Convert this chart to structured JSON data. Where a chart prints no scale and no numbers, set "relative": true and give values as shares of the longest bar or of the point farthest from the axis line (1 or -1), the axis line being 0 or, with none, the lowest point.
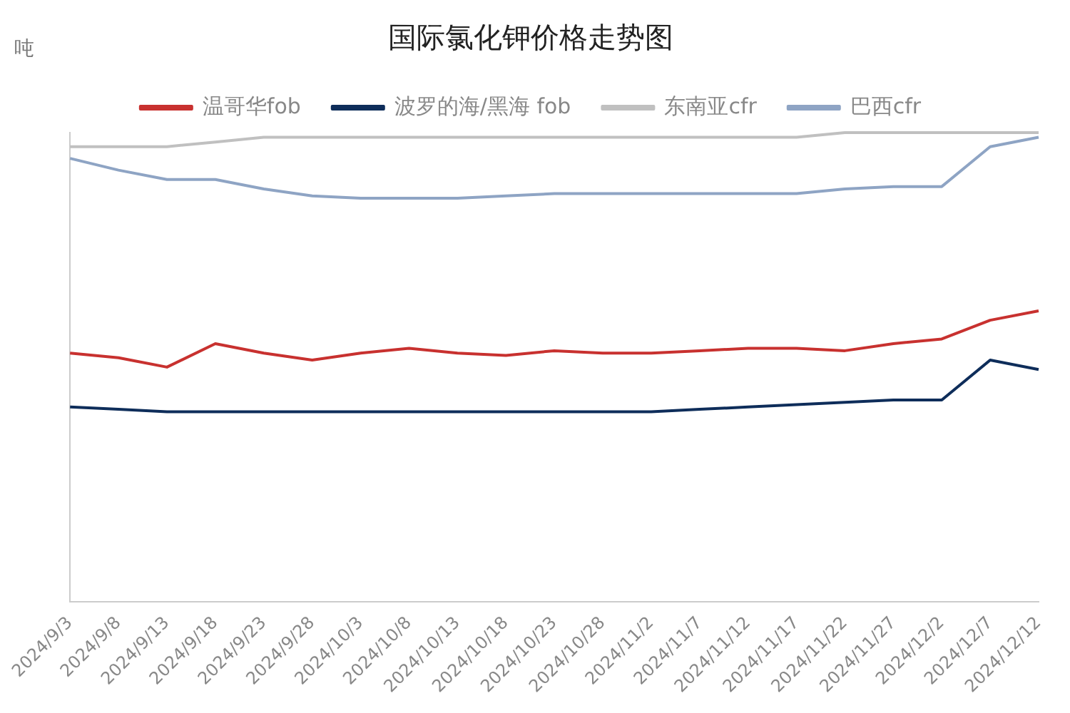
{
  "chart_data": {
    "type": "line",
    "title": "国际氯化钾价格走势图",
    "ylabel": "吨",
    "relative": true,
    "legend": "top",
    "grid": false,
    "marker": "none",
    "line_style": "solid",
    "categories": [
      "2024/9/3",
      "2024/9/8",
      "2024/9/13",
      "2024/9/18",
      "2024/9/23",
      "2024/9/28",
      "2024/10/3",
      "2024/10/8",
      "2024/10/13",
      "2024/10/18",
      "2024/10/23",
      "2024/10/28",
      "2024/11/2",
      "2024/11/7",
      "2024/11/12",
      "2024/11/17",
      "2024/11/22",
      "2024/11/27",
      "2024/12/2",
      "2024/12/7",
      "2024/12/12"
    ],
    "series": [
      {
        "name": "温哥华fob",
        "color": "#c8312f",
        "values": [
          0.53,
          0.52,
          0.5,
          0.55,
          0.53,
          0.515,
          0.53,
          0.54,
          0.53,
          0.525,
          0.535,
          0.53,
          0.53,
          0.535,
          0.54,
          0.54,
          0.535,
          0.55,
          0.56,
          0.6,
          0.62
        ]
      },
      {
        "name": "波罗的海/黑海 fob",
        "color": "#0e2d5a",
        "values": [
          0.415,
          0.41,
          0.405,
          0.405,
          0.405,
          0.405,
          0.405,
          0.405,
          0.405,
          0.405,
          0.405,
          0.405,
          0.405,
          0.41,
          0.415,
          0.42,
          0.425,
          0.43,
          0.43,
          0.515,
          0.495
        ]
      },
      {
        "name": "东南亚cfr",
        "color": "#c0c0c0",
        "values": [
          0.97,
          0.97,
          0.97,
          0.98,
          0.99,
          0.99,
          0.99,
          0.99,
          0.99,
          0.99,
          0.99,
          0.99,
          0.99,
          0.99,
          0.99,
          0.99,
          1,
          1,
          1,
          1,
          1
        ]
      },
      {
        "name": "巴西cfr",
        "color": "#8ea4c4",
        "values": [
          0.945,
          0.92,
          0.9,
          0.9,
          0.88,
          0.865,
          0.86,
          0.86,
          0.86,
          0.865,
          0.87,
          0.87,
          0.87,
          0.87,
          0.87,
          0.87,
          0.88,
          0.885,
          0.885,
          0.97,
          0.99
        ]
      }
    ]
  }
}
